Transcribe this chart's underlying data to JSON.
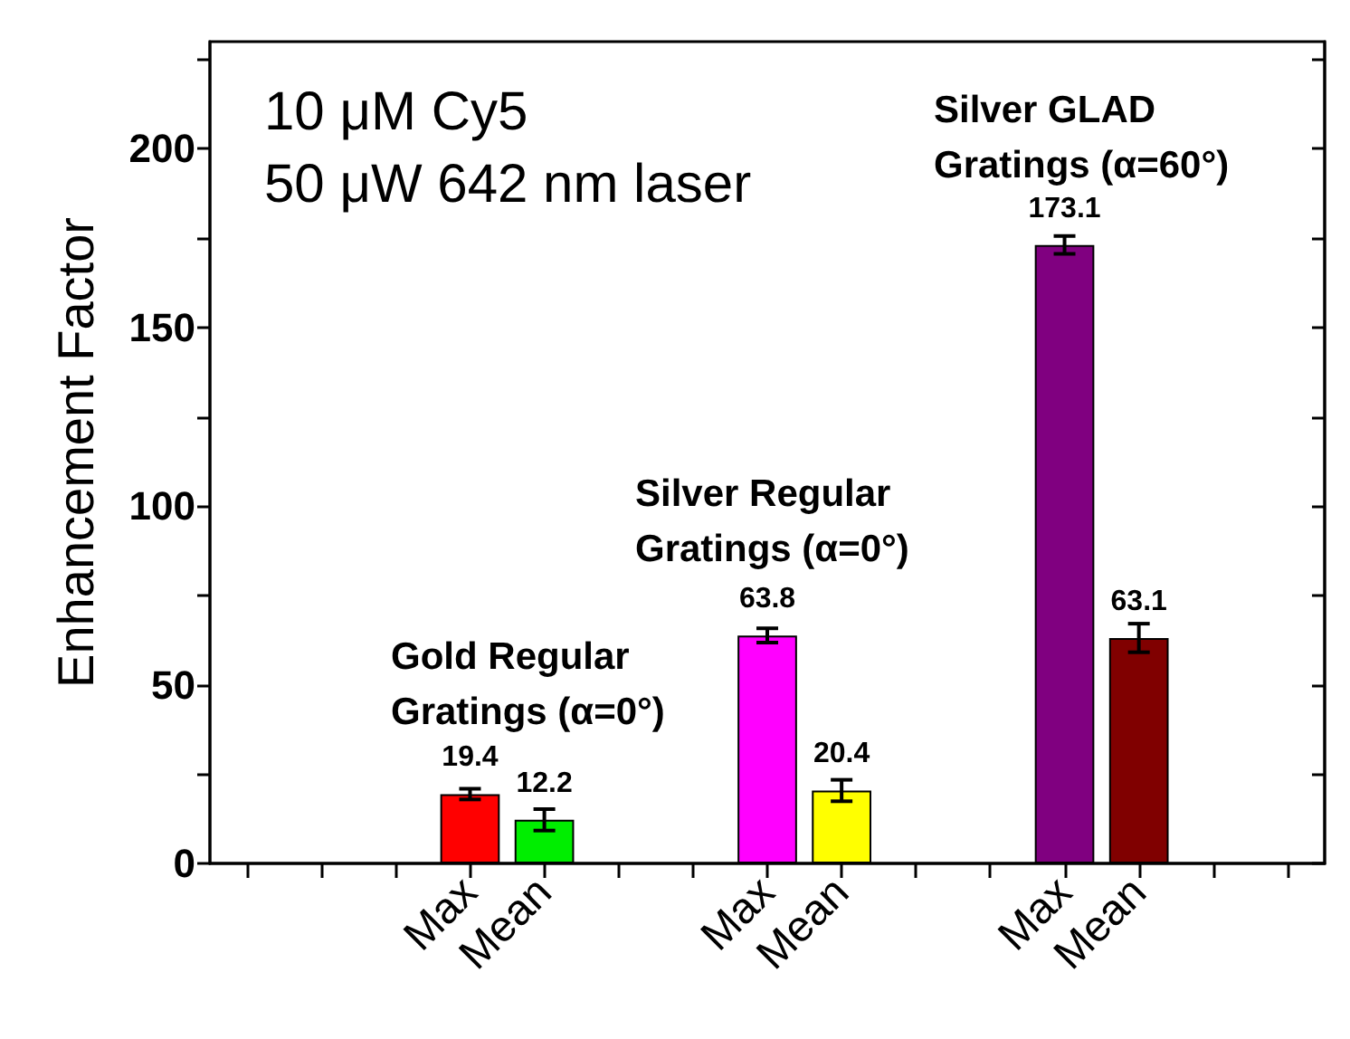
{
  "chart_data": {
    "type": "bar",
    "ylabel": "Enhancement Factor",
    "categories": [
      null,
      null,
      null,
      "Max",
      "Mean",
      null,
      null,
      "Max",
      "Mean",
      null,
      null,
      "Max",
      "Mean",
      null,
      null
    ],
    "values": [
      null,
      null,
      null,
      19.4,
      12.2,
      null,
      null,
      63.8,
      20.4,
      null,
      null,
      173.1,
      63.1,
      null,
      null
    ],
    "colors": [
      null,
      null,
      null,
      "#ff0000",
      "#00ee00",
      null,
      null,
      "#ff00ff",
      "#ffff00",
      null,
      null,
      "#800080",
      "#800000",
      null,
      null
    ],
    "errors": [
      null,
      null,
      null,
      1.5,
      3,
      null,
      null,
      2,
      3,
      null,
      null,
      2.5,
      4,
      null,
      null
    ],
    "data_labels": true,
    "ylim": [
      0,
      230
    ],
    "yticks": [
      0,
      {
        "value": 25,
        "label": null
      },
      50,
      {
        "value": 75,
        "label": null
      },
      100,
      {
        "value": 125,
        "label": null
      },
      150,
      {
        "value": 175,
        "label": null
      },
      200,
      {
        "value": 225,
        "label": null
      }
    ],
    "grid": false,
    "annotations": [
      "10 μM Cy5",
      "50 μW 642 nm laser",
      "Gold Regular\nGratings (α=0°)",
      "Silver Regular\nGratings (α=0°)",
      "Silver GLAD\nGratings (α=60°)"
    ]
  }
}
